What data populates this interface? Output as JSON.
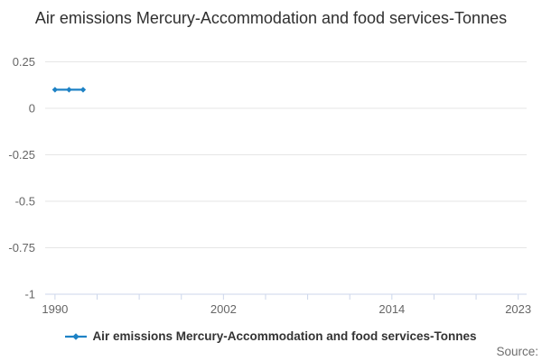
{
  "title": "Air emissions Mercury-Accommodation and food services-Tonnes",
  "source_label": "Source:",
  "legend": {
    "label": "Air emissions Mercury-Accommodation and food services-Tonnes"
  },
  "colors": {
    "series_blue": "#1e82c5",
    "gridline": "#e6e6e6",
    "axis_line": "#ccd6eb",
    "tick_label": "#666666",
    "title_text": "#2f2f2f",
    "legend_text": "#333333",
    "source_text": "#6e6e6e"
  },
  "chart_data": {
    "type": "line",
    "title": "Air emissions Mercury-Accommodation and food services-Tonnes",
    "xlabel": "",
    "ylabel": "",
    "x": [
      1990,
      1991,
      1992
    ],
    "series": [
      {
        "name": "Air emissions Mercury-Accommodation and food services-Tonnes",
        "values": [
          0.1,
          0.1,
          0.1
        ]
      }
    ],
    "xlim": [
      1989.3,
      2023.6
    ],
    "ylim": [
      -1,
      0.25
    ],
    "y_ticks": [
      0.25,
      0,
      -0.25,
      -0.5,
      -0.75,
      -1
    ],
    "y_tick_labels": [
      "0.25",
      "0",
      "-0.25",
      "-0.5",
      "-0.75",
      "-1"
    ],
    "x_ticks": [
      1990,
      1993,
      1996,
      1999,
      2002,
      2005,
      2008,
      2011,
      2014,
      2017,
      2020,
      2023
    ],
    "x_labeled_ticks": [
      1990,
      2002,
      2014,
      2023
    ],
    "grid": true,
    "legend_position": "bottom",
    "marker": "diamond"
  }
}
